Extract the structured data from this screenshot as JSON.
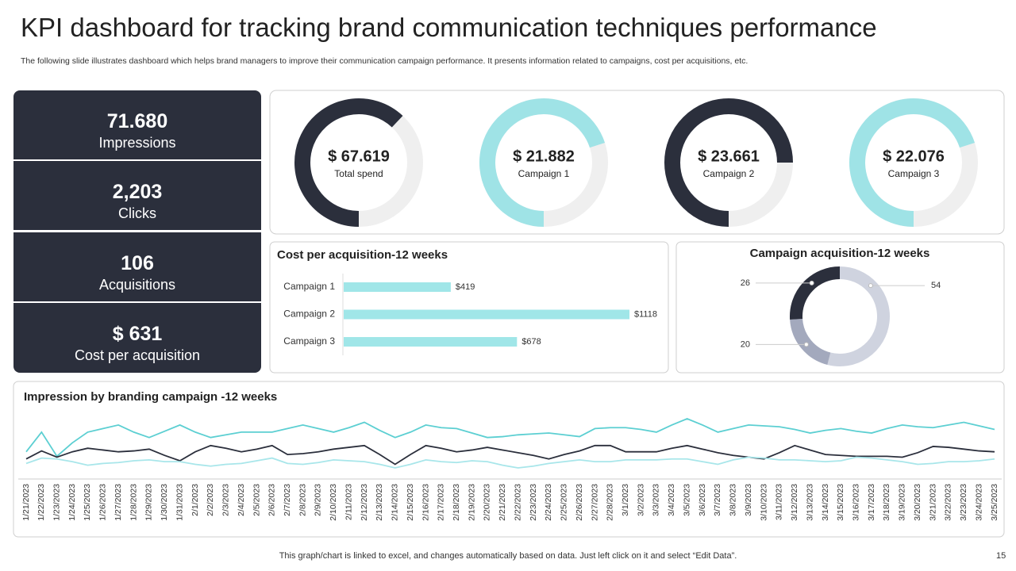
{
  "title": "KPI dashboard for tracking brand communication  techniques performance",
  "subtitle": "The following slide illustrates dashboard which helps brand managers to improve their communication campaign performance. It presents information related to campaigns, cost per acquisitions, etc.",
  "kpis": [
    {
      "value": "71.680",
      "label": "Impressions"
    },
    {
      "value": "2,203",
      "label": "Clicks"
    },
    {
      "value": "106",
      "label": "Acquisitions"
    },
    {
      "value": "$ 631",
      "label": "Cost per acquisition"
    }
  ],
  "footer": "This graph/chart is linked to excel,  and changes automatically based on data. Just left click on it and select “Edit Data”.",
  "page_number": "15",
  "chart_data": [
    {
      "type": "gauge",
      "value": 67.619,
      "value_label": "$ 67.619",
      "label": "Total spend",
      "fill_percent": 62,
      "color": "#2b2f3c"
    },
    {
      "type": "gauge",
      "value": 21.882,
      "value_label": "$ 21.882",
      "label": "Campaign 1",
      "fill_percent": 70,
      "color": "#9fe3e6"
    },
    {
      "type": "gauge",
      "value": 23.661,
      "value_label": "$ 23.661",
      "label": "Campaign 2",
      "fill_percent": 75,
      "color": "#2b2f3c"
    },
    {
      "type": "gauge",
      "value": 22.076,
      "value_label": "$ 22.076",
      "label": "Campaign 3",
      "fill_percent": 70,
      "color": "#9fe3e6"
    },
    {
      "type": "hbar",
      "title": "Cost  per acquisition-12 weeks",
      "categories": [
        "Campaign 1",
        "Campaign 2",
        "Campaign 3"
      ],
      "values": [
        419,
        1118,
        678
      ],
      "value_labels": [
        "$419",
        "$1118",
        "$678"
      ],
      "color": "#a0e6e8"
    },
    {
      "type": "donut",
      "title": "Campaign acquisition-12 weeks",
      "values": [
        54,
        20,
        26
      ],
      "colors": [
        "#cfd3df",
        "#a3a9bd",
        "#2b2f3c"
      ]
    },
    {
      "type": "line",
      "title": "Impression by branding campaign -12 weeks",
      "categories": [
        "1/21/2023",
        "1/22/2023",
        "1/23/2023",
        "1/24/2023",
        "1/25/2023",
        "1/26/2023",
        "1/27/2023",
        "1/28/2023",
        "1/29/2023",
        "1/30/2023",
        "1/31/2023",
        "2/1/2023",
        "2/2/2023",
        "2/3/2023",
        "2/4/2023",
        "2/5/2023",
        "2/6/2023",
        "2/7/2023",
        "2/8/2023",
        "2/9/2023",
        "2/10/2023",
        "2/11/2023",
        "2/12/2023",
        "2/13/2023",
        "2/14/2023",
        "2/15/2023",
        "2/16/2023",
        "2/17/2023",
        "2/18/2023",
        "2/19/2023",
        "2/20/2023",
        "2/21/2023",
        "2/22/2023",
        "2/23/2023",
        "2/24/2023",
        "2/25/2023",
        "2/26/2023",
        "2/27/2023",
        "2/28/2023",
        "3/1/2023",
        "3/2/2023",
        "3/3/2023",
        "3/4/2023",
        "3/5/2023",
        "3/6/2023",
        "3/7/2023",
        "3/8/2023",
        "3/9/2023",
        "3/10/2023",
        "3/11/2023",
        "3/12/2023",
        "3/13/2023",
        "3/14/2023",
        "3/15/2023",
        "3/16/2023",
        "3/17/2023",
        "3/18/2023",
        "3/19/2023",
        "3/20/2023",
        "3/21/2023",
        "3/22/2023",
        "3/23/2023",
        "3/24/2023",
        "3/25/2023"
      ],
      "series": [
        {
          "color": "#5ccfd2",
          "values": [
            33,
            55,
            28,
            43,
            55,
            59,
            63,
            55,
            49,
            56,
            63,
            55,
            49,
            52,
            55,
            55,
            55,
            59,
            63,
            59,
            55,
            60,
            66,
            57,
            49,
            55,
            63,
            60,
            59,
            54,
            49,
            50,
            52,
            53,
            54,
            52,
            50,
            59,
            60,
            60,
            58,
            55,
            63,
            70,
            63,
            55,
            59,
            63,
            62,
            61,
            58,
            54,
            57,
            59,
            56,
            54,
            59,
            63,
            61,
            60,
            63,
            66,
            62,
            58
          ]
        },
        {
          "color": "#2b2f3c",
          "values": [
            25,
            34,
            27,
            33,
            37,
            35,
            33,
            34,
            36,
            29,
            23,
            33,
            40,
            37,
            33,
            36,
            40,
            30,
            31,
            33,
            36,
            38,
            40,
            30,
            19,
            30,
            40,
            37,
            33,
            35,
            38,
            35,
            32,
            29,
            25,
            30,
            34,
            40,
            40,
            33,
            33,
            33,
            37,
            40,
            36,
            32,
            29,
            27,
            25,
            32,
            40,
            35,
            30,
            29,
            28,
            28,
            28,
            27,
            32,
            39,
            38,
            36,
            34,
            33
          ]
        },
        {
          "color": "#a8e6ea",
          "values": [
            20,
            26,
            25,
            22,
            18,
            20,
            21,
            23,
            24,
            22,
            22,
            19,
            17,
            19,
            20,
            23,
            26,
            20,
            19,
            21,
            24,
            23,
            22,
            19,
            15,
            19,
            24,
            22,
            21,
            23,
            22,
            18,
            15,
            17,
            20,
            22,
            24,
            22,
            22,
            24,
            24,
            24,
            25,
            25,
            22,
            19,
            24,
            27,
            26,
            24,
            24,
            23,
            22,
            23,
            27,
            26,
            24,
            22,
            19,
            20,
            22,
            22,
            23,
            25
          ]
        }
      ]
    }
  ]
}
